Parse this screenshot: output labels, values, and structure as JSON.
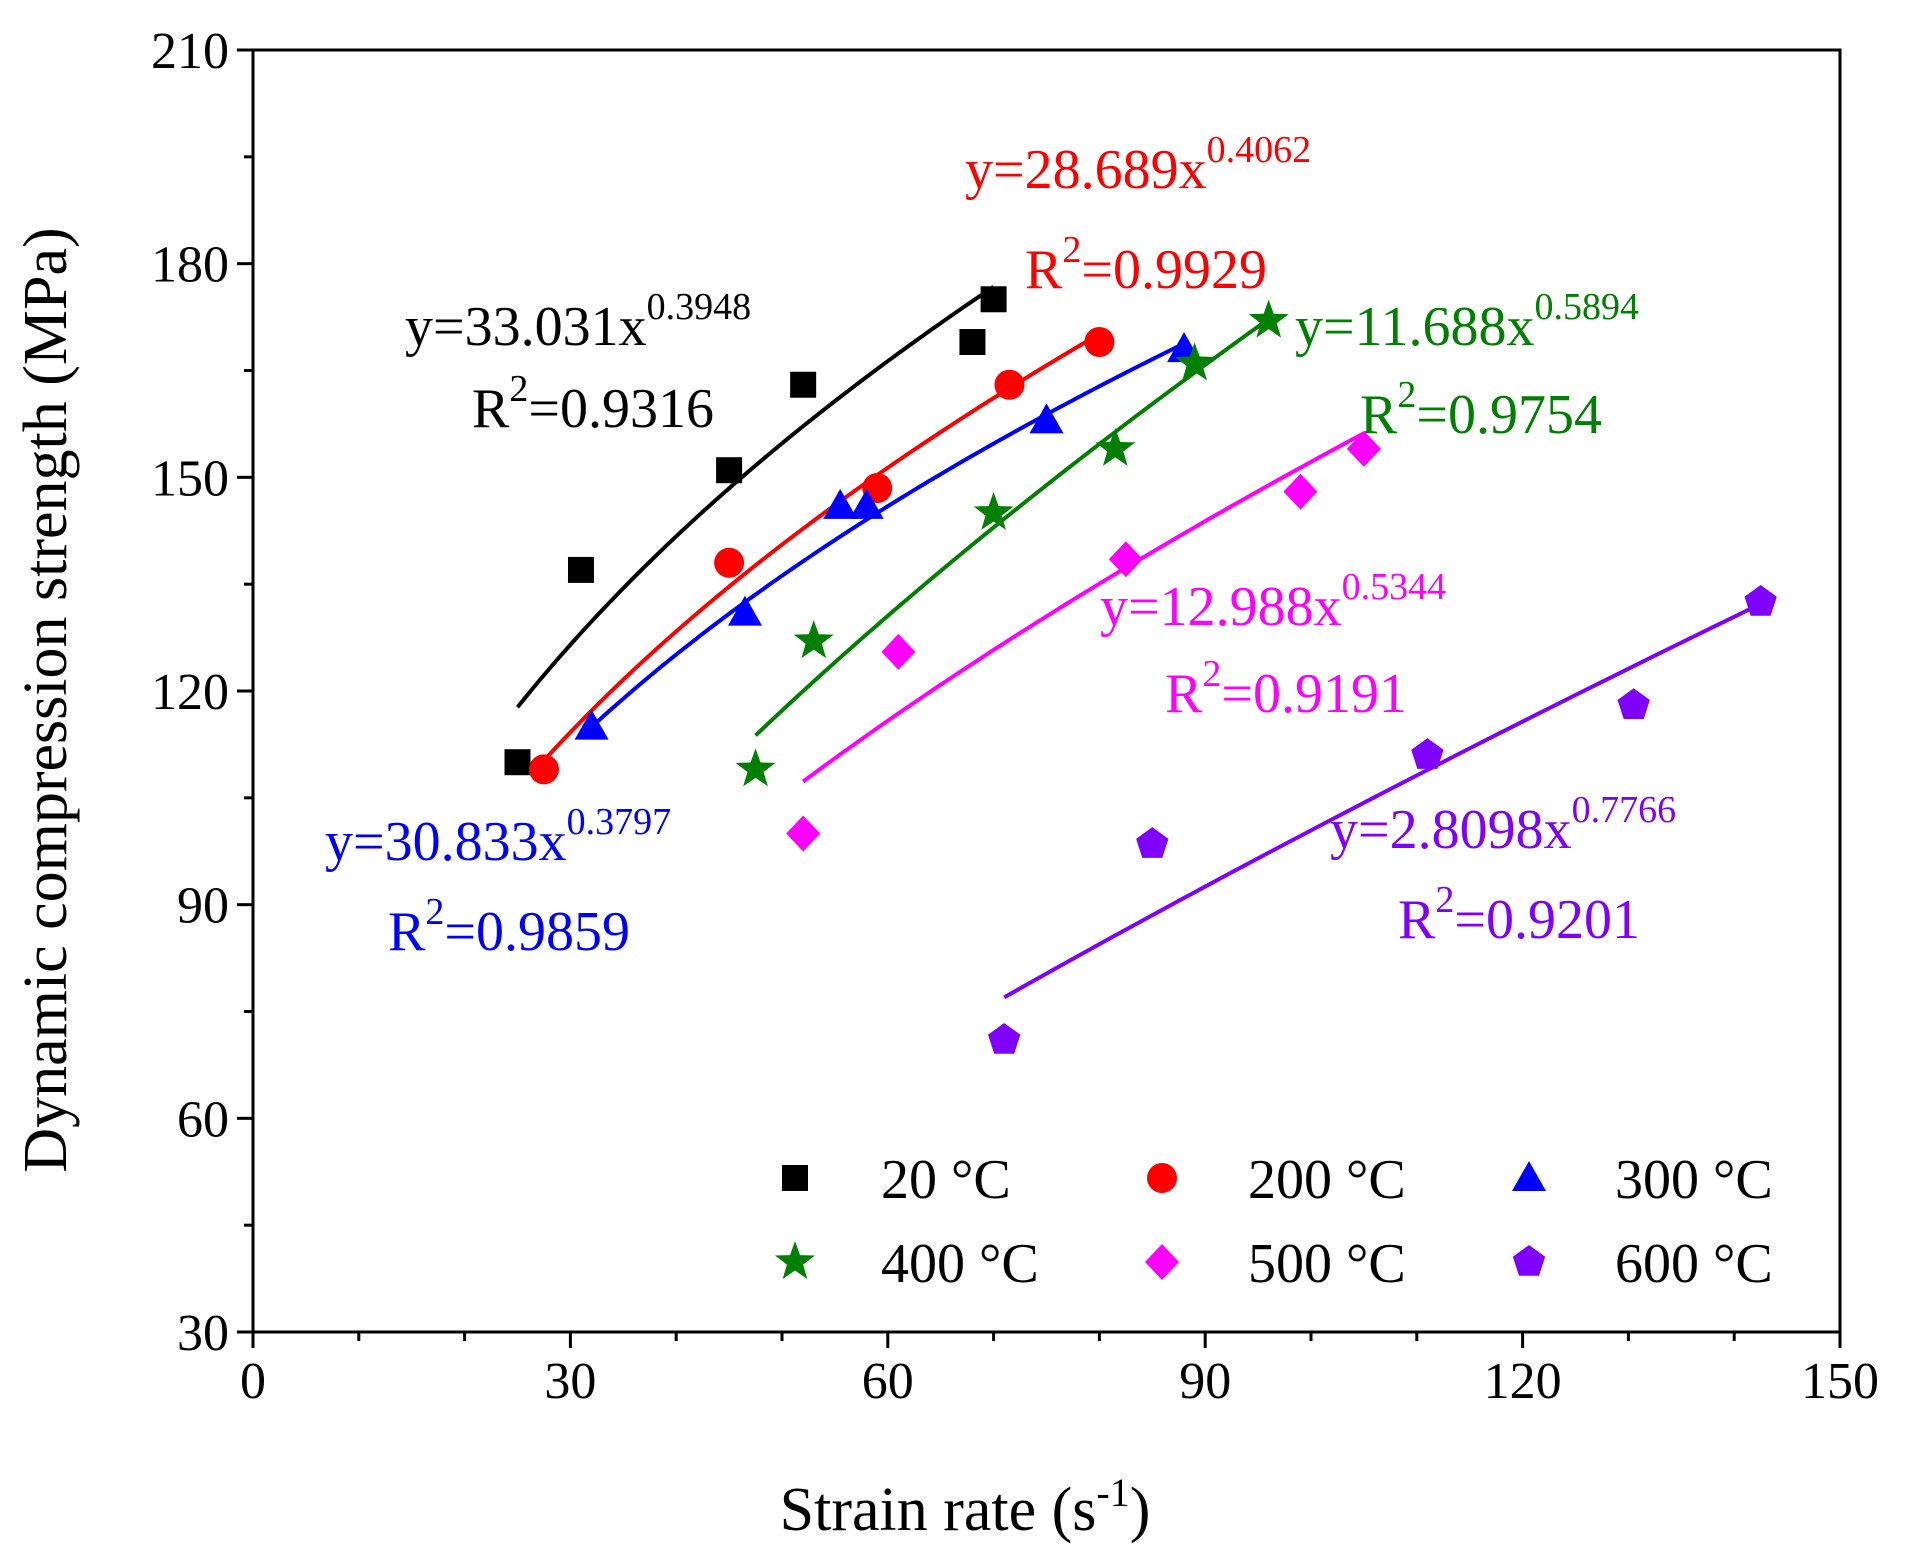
{
  "chart_data": {
    "type": "scatter",
    "xlabel": "Strain rate (s",
    "xlabel_sup": "-1",
    "xlabel_end": ")",
    "ylabel": "Dynamic compression strength (MPa)",
    "xlim": [
      0,
      150
    ],
    "ylim": [
      30,
      210
    ],
    "xticks": [
      "0",
      "30",
      "60",
      "90",
      "120",
      "150"
    ],
    "yticks": [
      "30",
      "60",
      "90",
      "120",
      "150",
      "180",
      "210"
    ],
    "grid": false,
    "legend_position": "bottom-right",
    "series": [
      {
        "name": "20 °C",
        "color": "#000000",
        "marker": "square",
        "x": [
          25,
          31,
          45,
          52,
          68,
          70
        ],
        "y": [
          110,
          137,
          151,
          163,
          169,
          175
        ],
        "fit": {
          "a": 33.031,
          "b": 0.3948,
          "x_range": [
            25,
            70
          ],
          "equation": "y=33.031x",
          "exponent": "0.3948",
          "r2": "=0.9316"
        }
      },
      {
        "name": "200 °C",
        "color": "#ff0000",
        "marker": "circle",
        "x": [
          27.5,
          45,
          59,
          71.5,
          80
        ],
        "y": [
          109,
          138,
          148.5,
          163,
          169
        ],
        "fit": {
          "a": 28.689,
          "b": 0.4062,
          "x_range": [
            27.5,
            80
          ],
          "equation": "y=28.689x",
          "exponent": "0.4062",
          "r2": "=0.9929"
        }
      },
      {
        "name": "300 °C",
        "color": "#0000ff",
        "marker": "triangle",
        "x": [
          32,
          46.5,
          55.5,
          58,
          75,
          88
        ],
        "y": [
          115,
          131,
          146,
          146,
          158,
          168
        ],
        "fit": {
          "a": 30.833,
          "b": 0.3797,
          "x_range": [
            32,
            88
          ],
          "equation": "y=30.833x",
          "exponent": "0.3797",
          "r2": "=0.9859"
        }
      },
      {
        "name": "400 °C",
        "color": "#008000",
        "marker": "star",
        "x": [
          47.5,
          53,
          70,
          81.5,
          89,
          96
        ],
        "y": [
          109,
          127,
          145,
          154,
          166,
          172
        ],
        "fit": {
          "a": 11.688,
          "b": 0.5894,
          "x_range": [
            47.5,
            96
          ],
          "equation": "y=11.688x",
          "exponent": "0.5894",
          "r2": "=0.9754"
        }
      },
      {
        "name": "500 °C",
        "color": "#ff00ff",
        "marker": "diamond",
        "x": [
          52,
          61,
          82.5,
          99,
          105
        ],
        "y": [
          100,
          125.5,
          138.5,
          148,
          154
        ],
        "fit": {
          "a": 12.988,
          "b": 0.5344,
          "x_range": [
            52,
            105
          ],
          "equation": "y=12.988x",
          "exponent": "0.5344",
          "r2": "=0.9191"
        }
      },
      {
        "name": "600 °C",
        "color": "#8000ff",
        "marker": "pentagon",
        "x": [
          71,
          85,
          111,
          130.5,
          142.5
        ],
        "y": [
          71,
          98.5,
          111,
          118,
          132.5
        ],
        "fit": {
          "a": 2.8098,
          "b": 0.7766,
          "x_range": [
            71,
            142.5
          ],
          "equation": "y=2.8098x",
          "exponent": "0.7766",
          "r2": "=0.9201"
        }
      }
    ],
    "r2_prefix": "R",
    "r2_sup": "2"
  }
}
